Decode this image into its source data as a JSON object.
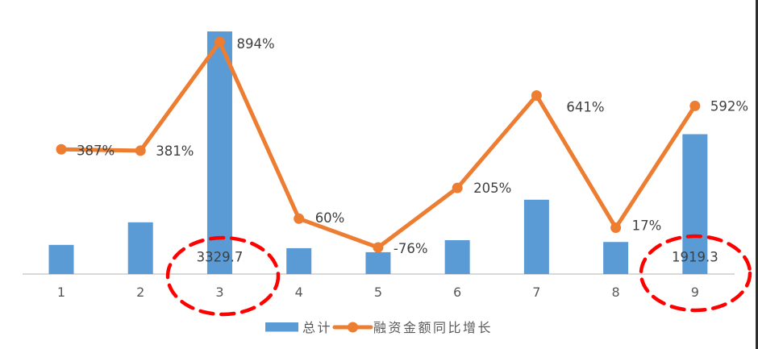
{
  "chart_data": {
    "type": "combo",
    "title": "",
    "categories": [
      "1",
      "2",
      "3",
      "4",
      "5",
      "6",
      "7",
      "8",
      "9"
    ],
    "series": [
      {
        "name": "总计",
        "type": "bar",
        "color": "#5B9BD5",
        "values": [
          400,
          710,
          3329.7,
          355,
          300,
          465,
          1020,
          440,
          1919.3
        ],
        "note": "only categories 3 and 9 show explicit value labels; other bar values estimated from pixel heights",
        "shown_value_labels": {
          "2": "3329.7",
          "8": "1919.3"
        }
      },
      {
        "name": "融资金额同比增长",
        "type": "line",
        "color": "#ED7D31",
        "values_percent": [
          387,
          381,
          894,
          60,
          -76,
          205,
          641,
          17,
          592
        ],
        "point_labels": [
          "387%",
          "381%",
          "894%",
          "60%",
          "-76%",
          "205%",
          "641%",
          "17%",
          "592%"
        ]
      }
    ],
    "legend": {
      "position": "bottom",
      "items": [
        {
          "label": "总计",
          "swatch": "bar",
          "color": "#5B9BD5"
        },
        {
          "label": "融资金额同比增长",
          "swatch": "line-marker",
          "color": "#ED7D31"
        }
      ]
    },
    "annotations": [
      {
        "type": "dashed-ellipse",
        "around_category": "3",
        "color": "#FF0000"
      },
      {
        "type": "dashed-ellipse",
        "around_category": "9",
        "color": "#FF0000"
      }
    ],
    "axes": {
      "x_axis_line_color": "#D9D9D9",
      "y_left_visible": false,
      "y_right_visible": false,
      "gridlines": false,
      "left_axis_range_estimate": [
        0,
        3760
      ],
      "right_axis_range_estimate_percent": [
        -200,
        1000
      ]
    },
    "label_color": "#404040",
    "tick_color": "#595959"
  }
}
